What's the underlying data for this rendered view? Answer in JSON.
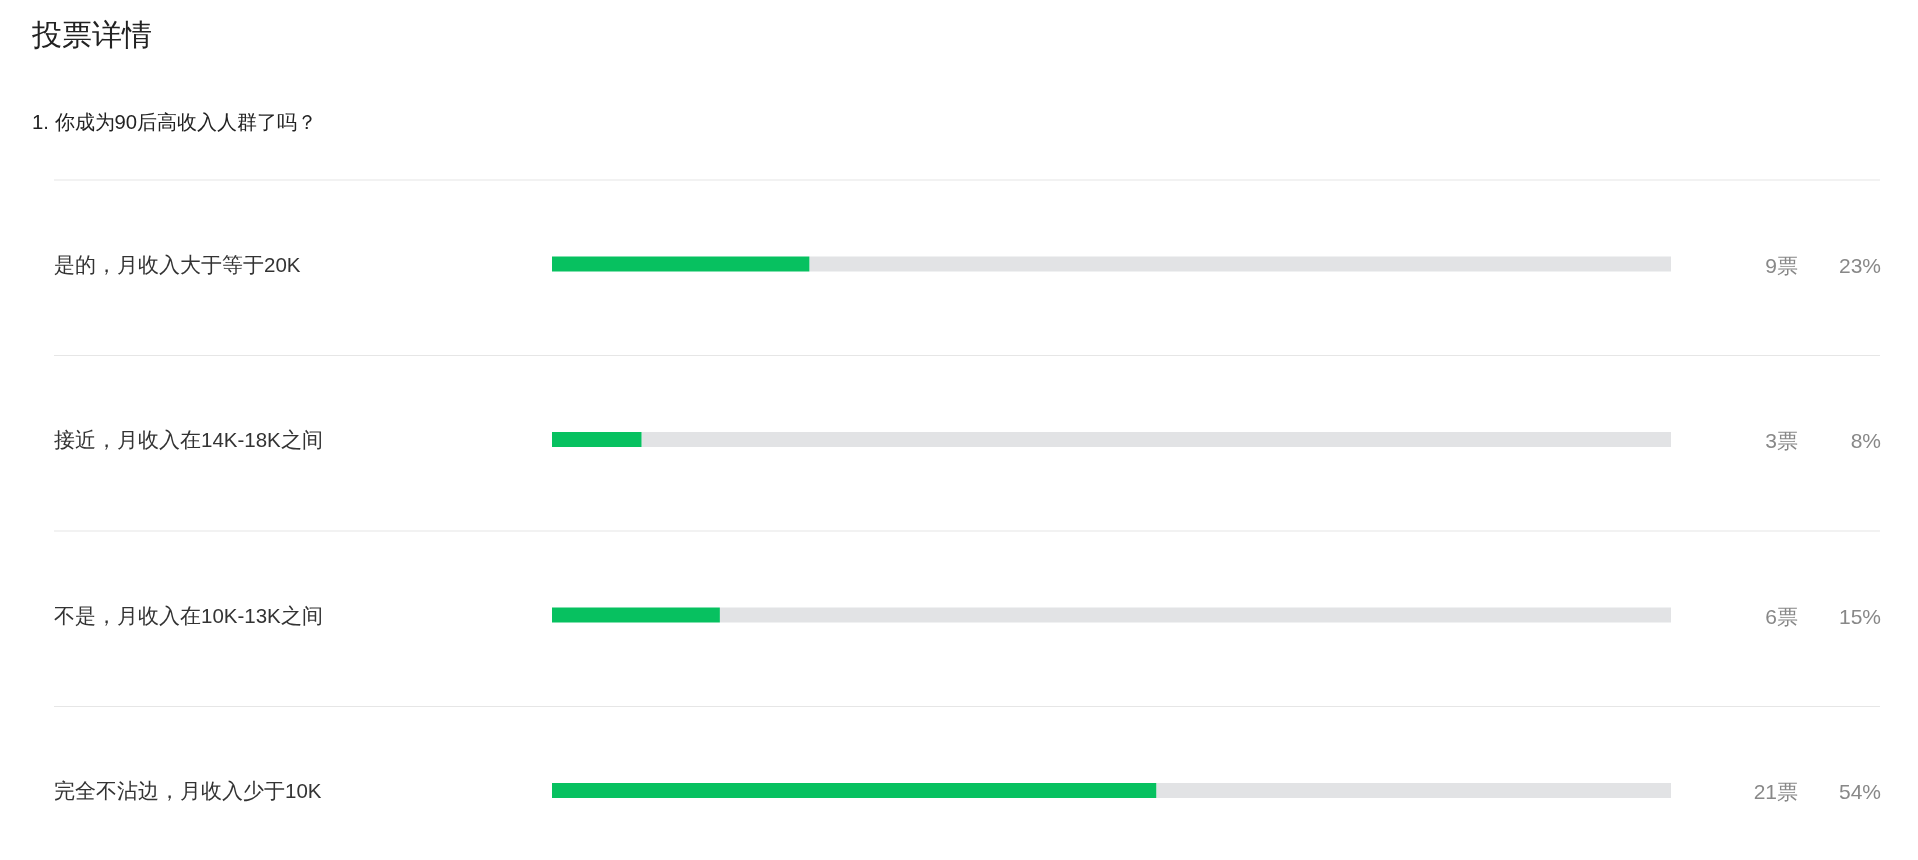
{
  "chart_data": {
    "type": "bar",
    "orientation": "horizontal",
    "title": "投票详情",
    "subtitle": "1. 你成为90后高收入人群了吗？",
    "categories": [
      "是的，月收入大于等于20K",
      "接近，月收入在14K-18K之间",
      "不是，月收入在10K-13K之间",
      "完全不沾边，月收入少于10K"
    ],
    "values": [
      23,
      8,
      15,
      54
    ],
    "color": "#07c160",
    "value_labels": [
      "23%",
      "8%",
      "15%",
      "54%"
    ],
    "annotations": [
      "9票",
      "3票",
      "6票",
      "21票"
    ],
    "xlim": [
      0,
      100
    ],
    "grid": "y",
    "tick_labels": "y"
  }
}
